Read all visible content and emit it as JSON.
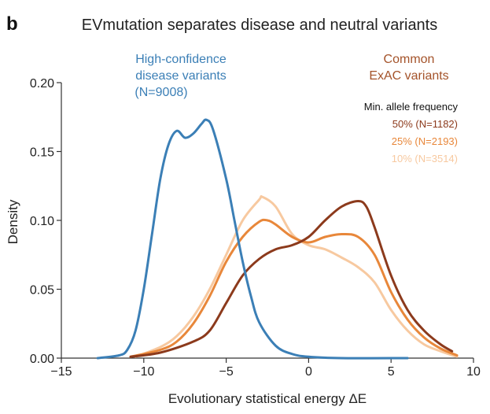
{
  "panel_label": "b",
  "chart_data": {
    "type": "line",
    "title": "EVmutation separates disease and neutral variants",
    "xlabel": "Evolutionary statistical energy ΔE",
    "ylabel": "Density",
    "xlim": [
      -15,
      10
    ],
    "ylim": [
      0,
      0.2
    ],
    "xticks": [
      "−15",
      "−10",
      "−5",
      "0",
      "5",
      "10"
    ],
    "xtick_values": [
      -15,
      -10,
      -5,
      0,
      5,
      10
    ],
    "yticks": [
      "0.00",
      "0.05",
      "0.10",
      "0.15",
      "0.20"
    ],
    "ytick_values": [
      0,
      0.05,
      0.1,
      0.15,
      0.2
    ],
    "grid": false,
    "annotations": {
      "disease": [
        "High-confidence",
        "disease variants",
        "(N=9008)"
      ],
      "common": [
        "Common",
        "ExAC variants"
      ],
      "legend_title": "Min. allele frequency"
    },
    "series": [
      {
        "name": "High-confidence disease variants (N=9008)",
        "legend": "",
        "color": "#3b7fb6",
        "x": [
          -12.8,
          -11.5,
          -11,
          -10.5,
          -10,
          -9.5,
          -9,
          -8.5,
          -8,
          -7.5,
          -7,
          -6.5,
          -6.2,
          -5.8,
          -5,
          -4.5,
          -4,
          -3.5,
          -3,
          -2,
          -1,
          0,
          2,
          6
        ],
        "y": [
          0,
          0.002,
          0.006,
          0.02,
          0.05,
          0.09,
          0.13,
          0.155,
          0.165,
          0.16,
          0.163,
          0.17,
          0.173,
          0.166,
          0.13,
          0.1,
          0.07,
          0.045,
          0.026,
          0.009,
          0.003,
          0.001,
          0,
          0
        ]
      },
      {
        "name": "50% (N=1182)",
        "legend": "50% (N=1182)",
        "color": "#8c3a1c",
        "x": [
          -10.8,
          -9,
          -7,
          -6,
          -5,
          -4,
          -3,
          -2,
          -1,
          0,
          1,
          2,
          3,
          3.5,
          4,
          5,
          6,
          7,
          8,
          8.7
        ],
        "y": [
          0.001,
          0.004,
          0.012,
          0.02,
          0.04,
          0.06,
          0.072,
          0.079,
          0.082,
          0.088,
          0.1,
          0.11,
          0.114,
          0.11,
          0.095,
          0.06,
          0.035,
          0.02,
          0.01,
          0.005
        ]
      },
      {
        "name": "25% (N=2193)",
        "legend": "25% (N=2193)",
        "color": "#e8873a",
        "x": [
          -10.8,
          -9,
          -8,
          -7,
          -6,
          -5,
          -4,
          -3,
          -2.5,
          -2,
          -1,
          0,
          1,
          2,
          3,
          4,
          5,
          6,
          7,
          8,
          9
        ],
        "y": [
          0.001,
          0.006,
          0.012,
          0.025,
          0.045,
          0.07,
          0.088,
          0.099,
          0.1,
          0.097,
          0.088,
          0.084,
          0.088,
          0.09,
          0.088,
          0.075,
          0.048,
          0.028,
          0.015,
          0.007,
          0.002
        ]
      },
      {
        "name": "10% (N=3514)",
        "legend": "10% (N=3514)",
        "color": "#f7c9a0",
        "x": [
          -10.5,
          -9,
          -8,
          -7,
          -6,
          -5,
          -4,
          -3,
          -2.8,
          -2,
          -1,
          0,
          1,
          2,
          3,
          4,
          5,
          6,
          7,
          8,
          9
        ],
        "y": [
          0.001,
          0.008,
          0.016,
          0.03,
          0.05,
          0.075,
          0.1,
          0.115,
          0.117,
          0.11,
          0.09,
          0.082,
          0.079,
          0.073,
          0.066,
          0.055,
          0.035,
          0.02,
          0.01,
          0.005,
          0.001
        ]
      }
    ]
  },
  "colors": {
    "axis": "#333333",
    "common_label": "#a4532a"
  }
}
